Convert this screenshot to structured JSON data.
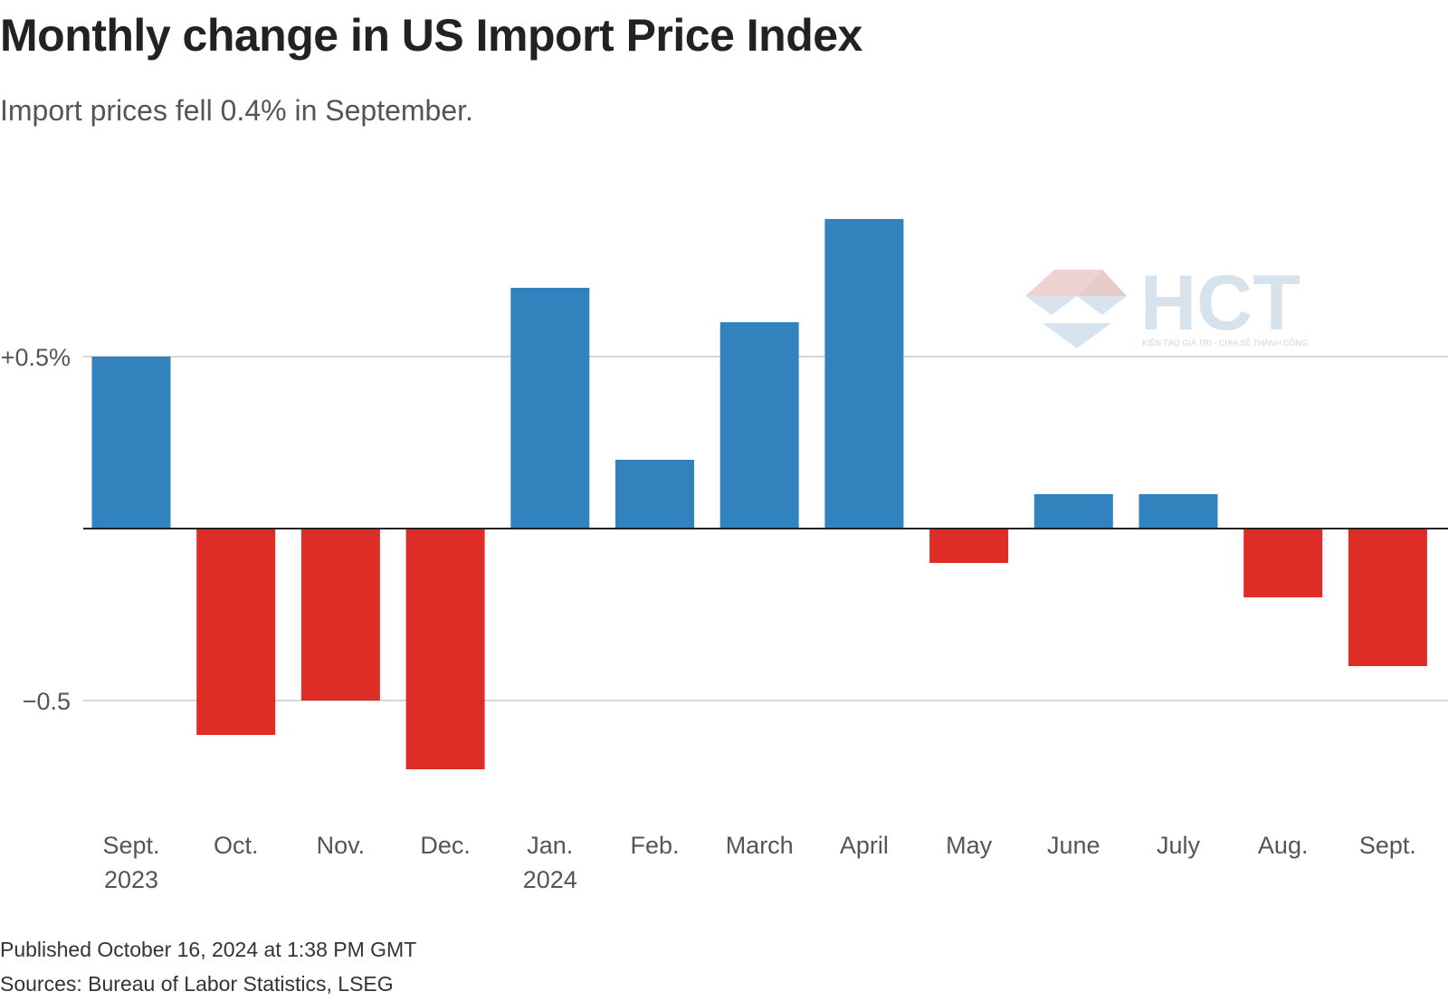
{
  "title": "Monthly change in US Import Price Index",
  "subtitle": "Import prices fell 0.4% in September.",
  "footer": {
    "published": "Published October 16, 2024 at 1:38 PM GMT",
    "sources": "Sources: Bureau of Labor Statistics, LSEG"
  },
  "watermark": {
    "logo_text": "HCT",
    "tagline": "KIẾN TẠO GIÁ TRỊ - CHIA SẺ THÀNH CÔNG"
  },
  "colors": {
    "positive": "#3282bd",
    "negative": "#de2d26",
    "gridline": "#cccccc",
    "baseline": "#222222",
    "watermark": "#d6e2ec"
  },
  "chart_data": {
    "type": "bar",
    "categories": [
      "Sept.",
      "Oct.",
      "Nov.",
      "Dec.",
      "Jan.",
      "Feb.",
      "March",
      "April",
      "May",
      "June",
      "July",
      "Aug.",
      "Sept."
    ],
    "category_sublabels": [
      "2023",
      "",
      "",
      "",
      "2024",
      "",
      "",
      "",
      "",
      "",
      "",
      "",
      ""
    ],
    "values": [
      0.5,
      -0.6,
      -0.5,
      -0.7,
      0.7,
      0.2,
      0.6,
      0.9,
      -0.1,
      0.1,
      0.1,
      -0.2,
      -0.4
    ],
    "title": "Monthly change in US Import Price Index",
    "subtitle": "Import prices fell 0.4% in September.",
    "unit": "%",
    "ylim": [
      -0.7,
      0.9
    ],
    "yticks": [
      {
        "value": 0.5,
        "label": "+0.5%"
      },
      {
        "value": -0.5,
        "label": "−0.5"
      }
    ],
    "grid": true,
    "legend": "none",
    "positive_color": "#3282bd",
    "negative_color": "#de2d26"
  }
}
